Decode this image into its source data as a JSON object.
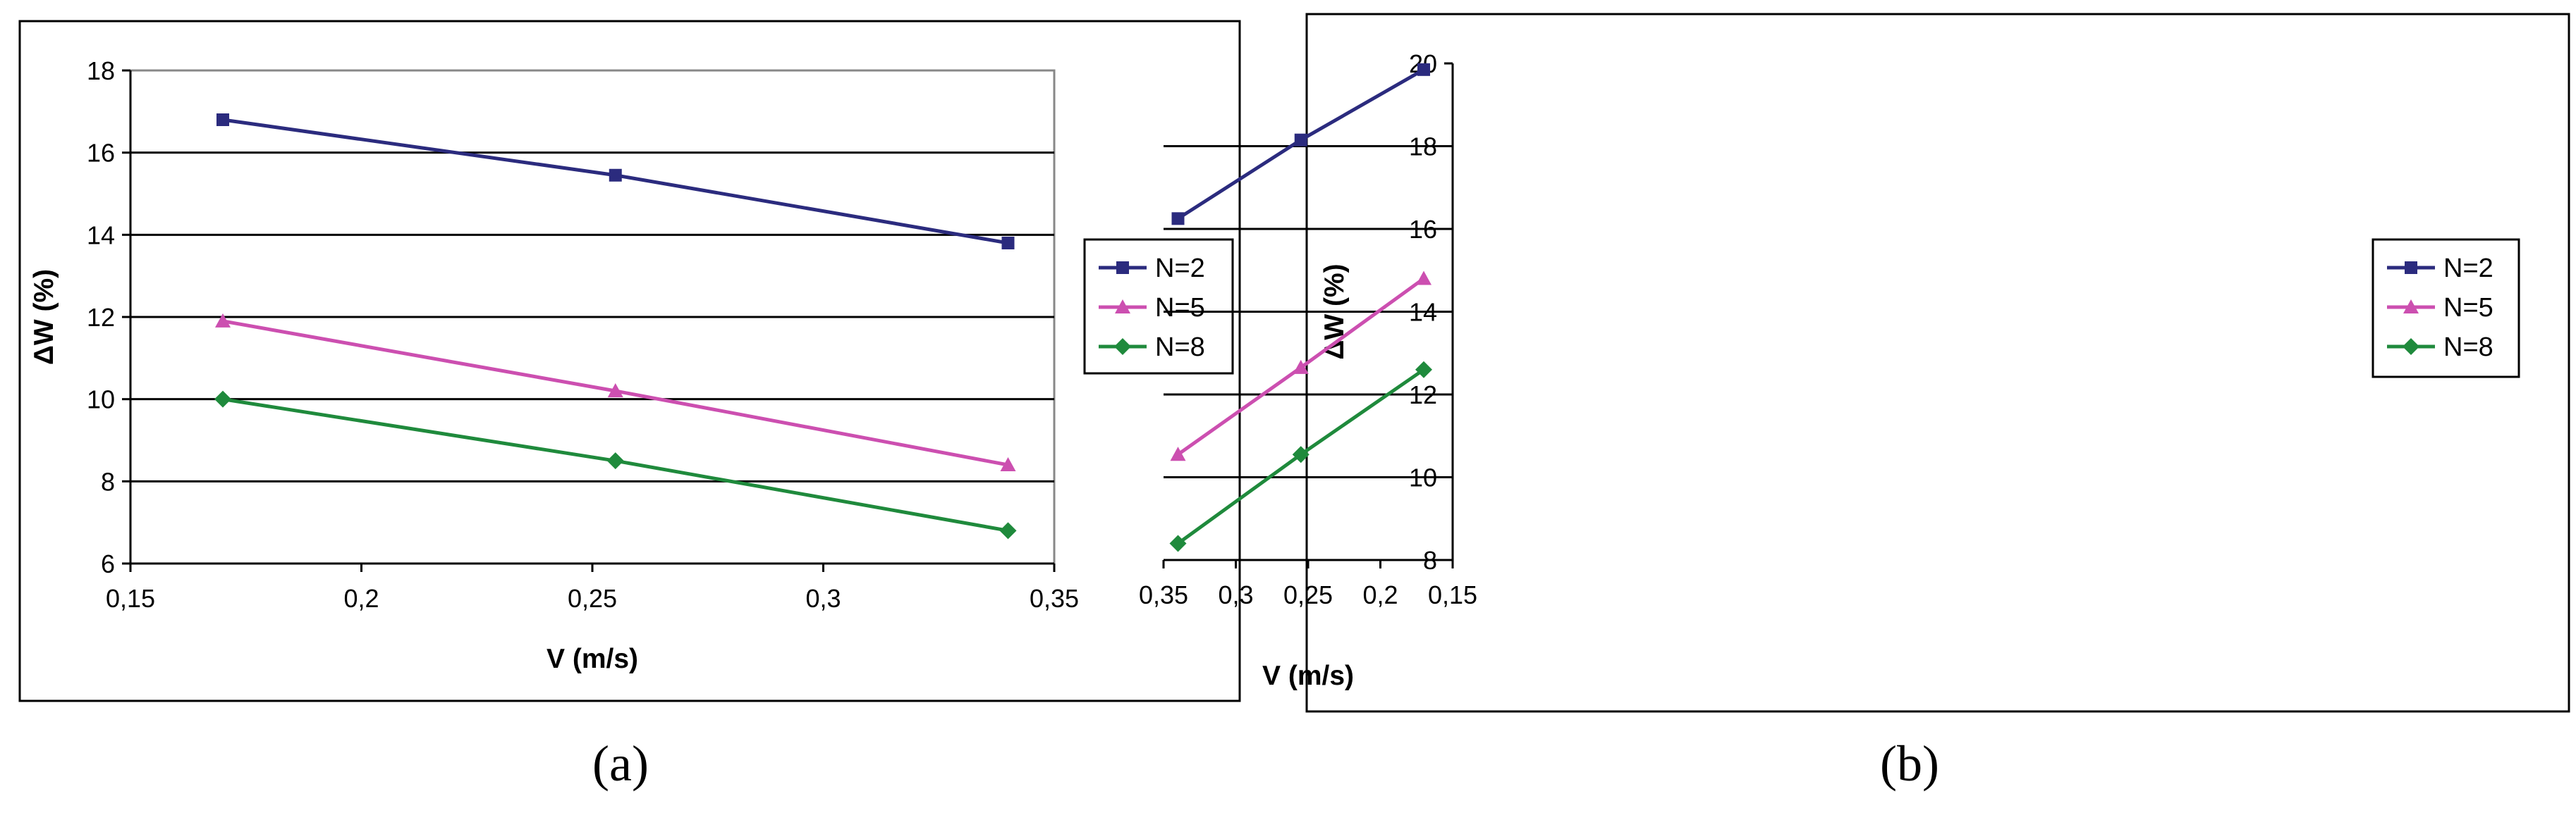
{
  "chart_data": [
    {
      "type": "line",
      "caption": "(a)",
      "title": "",
      "xlabel": "V (m/s)",
      "ylabel": "ΔW (%)",
      "xlim": [
        0.15,
        0.35
      ],
      "ylim": [
        6,
        18
      ],
      "xticks": [
        0.15,
        0.2,
        0.25,
        0.3,
        0.35
      ],
      "xtick_labels": [
        "0,15",
        "0,2",
        "0,25",
        "0,3",
        "0,35"
      ],
      "yticks": [
        6,
        8,
        10,
        12,
        14,
        16,
        18
      ],
      "ytick_labels": [
        "6",
        "8",
        "10",
        "12",
        "14",
        "16",
        "18"
      ],
      "grid": "horizontal",
      "legend_position": "right",
      "x": [
        0.17,
        0.255,
        0.34
      ],
      "series": [
        {
          "name": "N=2",
          "values": [
            16.8,
            15.45,
            13.8
          ],
          "color": "#2b2b7e",
          "marker": "square"
        },
        {
          "name": "N=5",
          "values": [
            11.9,
            10.2,
            8.4
          ],
          "color": "#cc4fb0",
          "marker": "triangle"
        },
        {
          "name": "N=8",
          "values": [
            10.0,
            8.5,
            6.8
          ],
          "color": "#1f8a3c",
          "marker": "diamond"
        }
      ]
    },
    {
      "type": "line",
      "caption": "(b)",
      "title": "",
      "xlabel": "V (m/s)",
      "ylabel": "ΔW (%)",
      "xlim": [
        0.15,
        0.35
      ],
      "ylim": [
        8,
        20
      ],
      "xticks": [
        0.15,
        0.2,
        0.25,
        0.3,
        0.35
      ],
      "xtick_labels": [
        "0,15",
        "0,2",
        "0,25",
        "0,3",
        "0,35"
      ],
      "yticks": [
        8,
        10,
        12,
        14,
        16,
        18,
        20
      ],
      "ytick_labels": [
        "8",
        "10",
        "12",
        "14",
        "16",
        "18",
        "20"
      ],
      "grid": "horizontal",
      "legend_position": "right",
      "x": [
        0.17,
        0.255,
        0.34
      ],
      "series": [
        {
          "name": "N=2",
          "values": [
            19.85,
            18.15,
            16.25
          ],
          "color": "#2b2b7e",
          "marker": "square"
        },
        {
          "name": "N=5",
          "values": [
            14.8,
            12.65,
            10.55
          ],
          "color": "#cc4fb0",
          "marker": "triangle"
        },
        {
          "name": "N=8",
          "values": [
            12.6,
            10.55,
            8.4
          ],
          "color": "#1f8a3c",
          "marker": "diamond"
        }
      ]
    }
  ]
}
